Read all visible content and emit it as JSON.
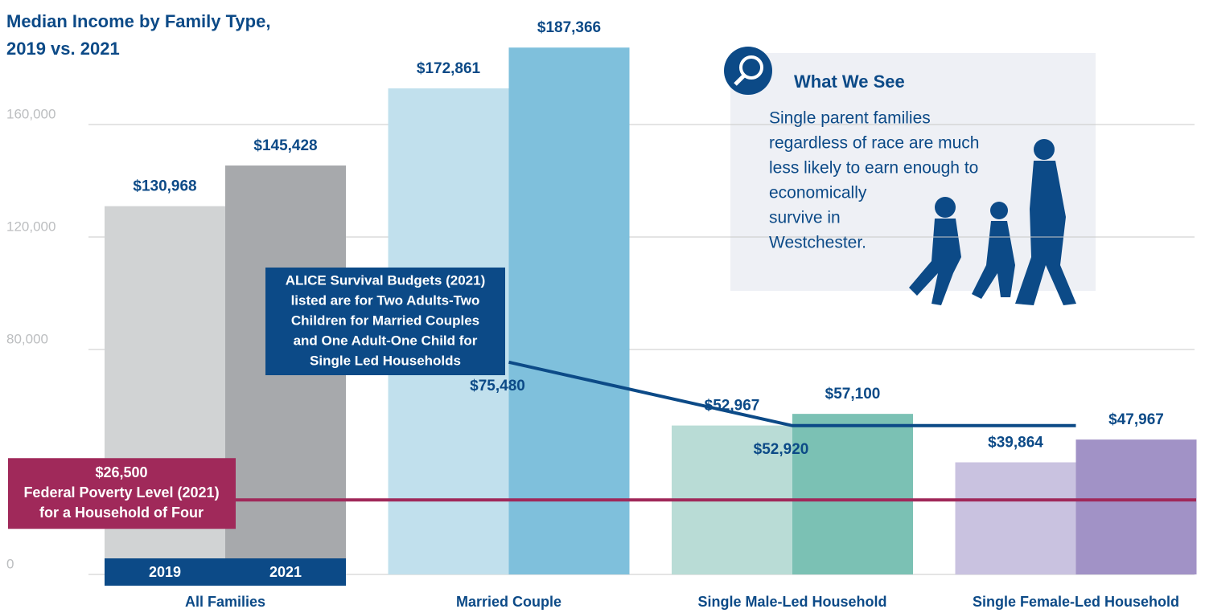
{
  "chart_data": {
    "type": "bar",
    "title": [
      "Median Income by Family Type,",
      "2019 vs. 2021"
    ],
    "categories": [
      "All Families",
      "Married Couple",
      "Single Male-Led Household",
      "Single Female-Led Household"
    ],
    "series": [
      {
        "name": "2019",
        "colors": [
          "#d1d3d4",
          "#c1e0ed",
          "#b9dcd6",
          "#c9c2e0"
        ],
        "values": [
          130968,
          172861,
          52967,
          39864
        ],
        "value_labels": [
          "$130,968",
          "$172,861",
          "$52,967",
          "$39,864"
        ]
      },
      {
        "name": "2021",
        "colors": [
          "#a7a9ac",
          "#7fc0dc",
          "#7bc1b4",
          "#a192c6"
        ],
        "values": [
          145428,
          187366,
          57100,
          47967
        ],
        "value_labels": [
          "$145,428",
          "$187,366",
          "$57,100",
          "$47,967"
        ]
      }
    ],
    "alice": {
      "color": "#0c4a87",
      "values": [
        null,
        75480,
        52920,
        52920
      ],
      "value_labels": [
        null,
        "$75,480",
        "$52,920",
        null
      ],
      "text": [
        "ALICE Survival Budgets (2021)",
        "listed are for Two Adults-Two",
        "Children for Married Couples",
        "and One Adult-One Child for",
        "Single Led Households"
      ]
    },
    "poverty": {
      "color": "#a0295a",
      "value": 26500,
      "value_label": "$26,500",
      "text": [
        "Federal Poverty Level (2021)",
        "for a Household of Four"
      ]
    },
    "callout": {
      "title": "What We See",
      "text": [
        "Single parent families",
        "regardless of race are much",
        "less likely to earn enough to",
        "economically",
        "survive in",
        "Westchester."
      ]
    },
    "ylim": [
      0,
      190000
    ],
    "yticks": [
      0,
      {
        "value": 80000,
        "label": "80,000"
      },
      {
        "value": 120000,
        "label": "120,000"
      },
      {
        "value": 160000,
        "label": "160,000"
      }
    ],
    "grid": true
  }
}
